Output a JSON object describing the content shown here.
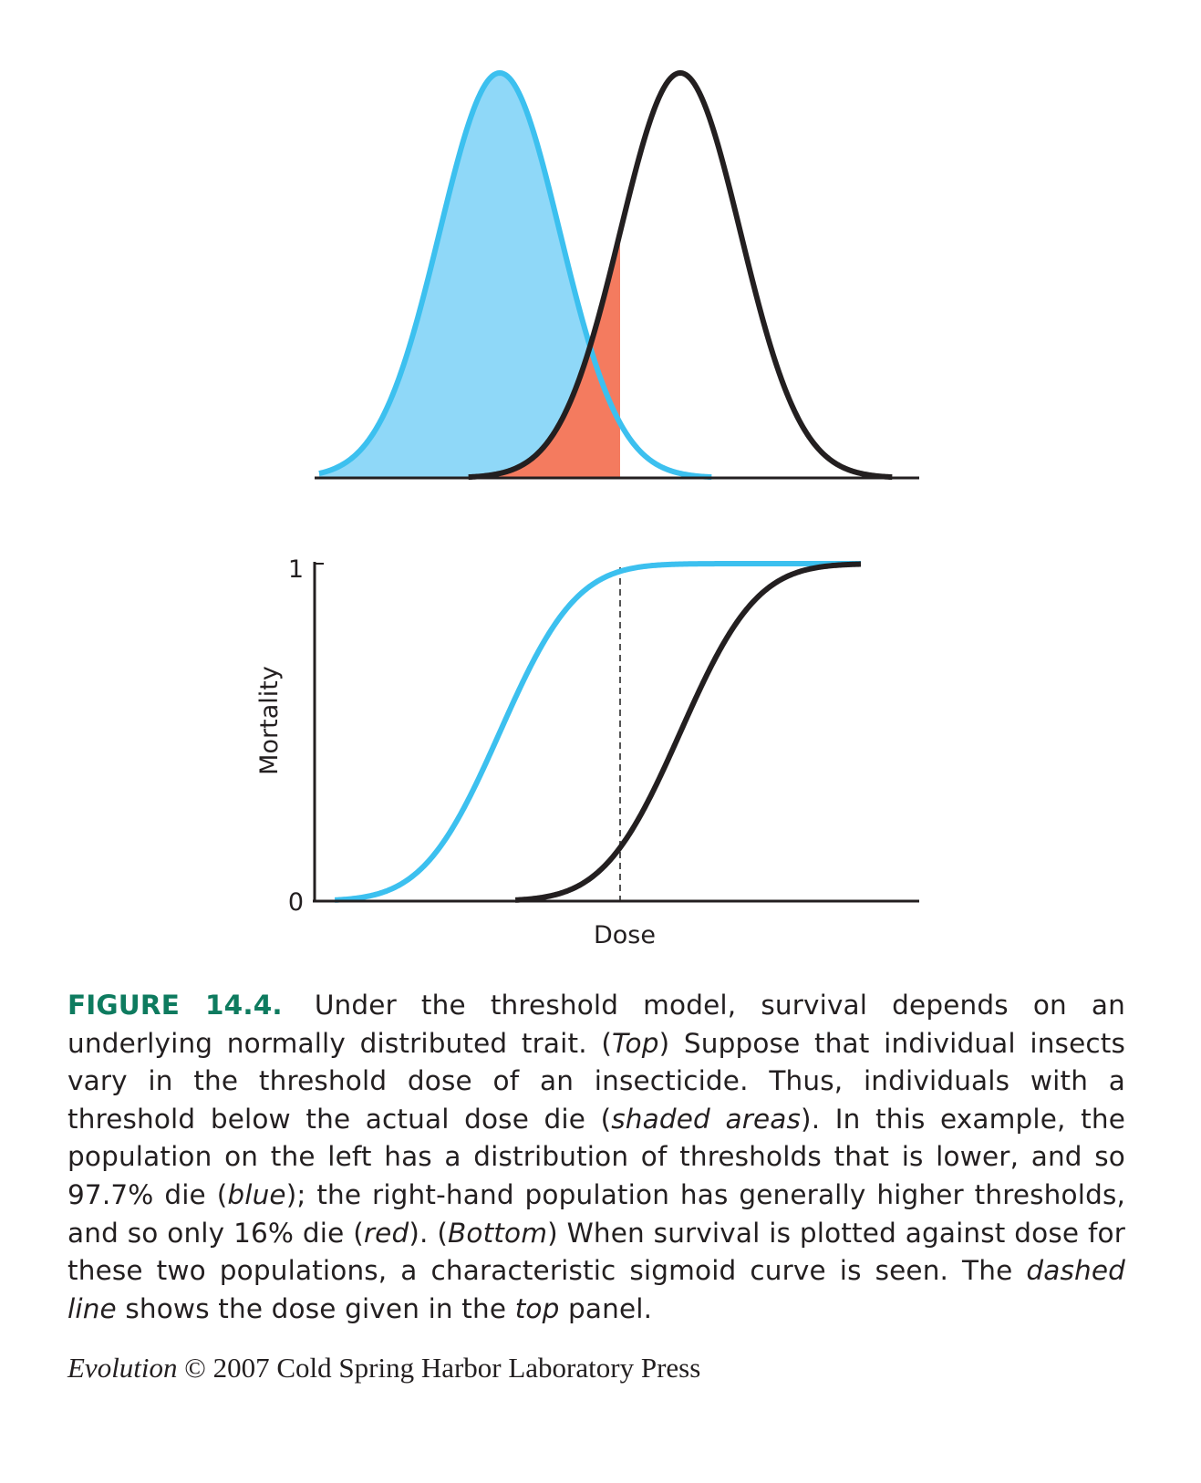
{
  "chart_data": [
    {
      "type": "area",
      "panel": "top",
      "title": "",
      "xlabel": "",
      "ylabel": "",
      "x_range": [
        0,
        10
      ],
      "dose_threshold": 5.0,
      "series": [
        {
          "name": "blue",
          "mean": 3.0,
          "sd": 1.0,
          "color": "#3cc0ef",
          "fill": "#8fd8f8",
          "shaded_below_dose_fraction": 0.977
        },
        {
          "name": "red",
          "mean": 6.0,
          "sd": 1.0,
          "color": "#231f20",
          "fill": "#f47b5f",
          "shaded_below_dose_fraction": 0.16
        }
      ],
      "grid": false,
      "legend": "none"
    },
    {
      "type": "line",
      "panel": "bottom",
      "title": "",
      "xlabel": "Dose",
      "ylabel": "Mortality",
      "x_range": [
        0,
        10
      ],
      "ylim": [
        0,
        1
      ],
      "yticks": [
        "0",
        "1"
      ],
      "dashed_line_x": 5.0,
      "series": [
        {
          "name": "blue",
          "color": "#3cc0ef",
          "mean": 3.0,
          "sd": 1.0,
          "value_at_dose": 0.977
        },
        {
          "name": "black",
          "color": "#231f20",
          "mean": 6.0,
          "sd": 1.0,
          "value_at_dose": 0.16
        }
      ],
      "grid": false,
      "legend": "none"
    }
  ],
  "caption": {
    "label": "FIGURE 14.4.",
    "p1": " Under the threshold model, survival depends on an underlying normally distributed trait. (",
    "e1": "Top",
    "p2": ") Suppose that individual insects vary in the threshold dose of an insecticide. Thus, individuals with a threshold below the actual dose die (",
    "e2": "shaded areas",
    "p3": "). In this example, the population on the left has a distribution of thresholds that is lower, and so 97.7% die (",
    "e3": "blue",
    "p4": "); the right-hand population has generally higher thresholds, and so only 16% die (",
    "e4": "red",
    "p5": "). (",
    "e5": "Bottom",
    "p6": ") When survival is plotted against dose for these two populations, a characteristic sigmoid curve is seen. The ",
    "e6": "dashed line",
    "p7": " shows the dose given in the ",
    "e7": "top",
    "p8": " panel."
  },
  "credit": {
    "title": "Evolution",
    "rest": " © 2007 Cold Spring Harbor Laboratory Press"
  }
}
